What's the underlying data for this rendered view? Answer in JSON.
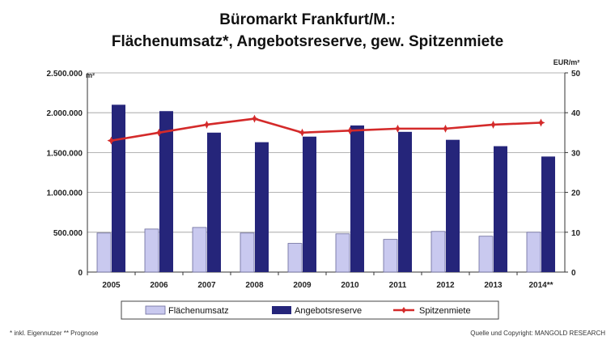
{
  "chart_data": {
    "type": "bar",
    "title_line1": "Büromarkt Frankfurt/M.:",
    "title_line2": "Flächenumsatz*, Angebotsreserve, gew. Spitzenmiete",
    "y_left_unit": "m²",
    "y_right_unit": "EUR/m²",
    "ylim_left": [
      0,
      2500000
    ],
    "ylim_right": [
      0,
      50
    ],
    "y_left_ticks": [
      "0",
      "500.000",
      "1.000.000",
      "1.500.000",
      "2.000.000",
      "2.500.000"
    ],
    "y_right_ticks": [
      "0",
      "10",
      "20",
      "30",
      "40",
      "50"
    ],
    "categories": [
      "2005",
      "2006",
      "2007",
      "2008",
      "2009",
      "2010",
      "2011",
      "2012",
      "2013",
      "2014**"
    ],
    "series": [
      {
        "name": "Flächenumsatz",
        "type": "bar",
        "axis": "left",
        "color": "#c9c9ef",
        "values": [
          490000,
          540000,
          560000,
          490000,
          360000,
          480000,
          410000,
          510000,
          450000,
          500000
        ]
      },
      {
        "name": "Angebotsreserve",
        "type": "bar",
        "axis": "left",
        "color": "#25257a",
        "values": [
          2100000,
          2020000,
          1750000,
          1630000,
          1700000,
          1840000,
          1760000,
          1660000,
          1580000,
          1450000
        ]
      },
      {
        "name": "Spitzenmiete",
        "type": "line",
        "axis": "right",
        "color": "#d42a2a",
        "values": [
          33,
          35,
          37,
          38.5,
          35,
          35.5,
          36,
          36,
          37,
          37.5
        ]
      }
    ],
    "grid": true,
    "legend_position": "bottom"
  },
  "footnotes": {
    "left": "* inkl. Eigennutzer  ** Prognose",
    "right": "Quelle und Copyright: MANGOLD RESEARCH"
  }
}
